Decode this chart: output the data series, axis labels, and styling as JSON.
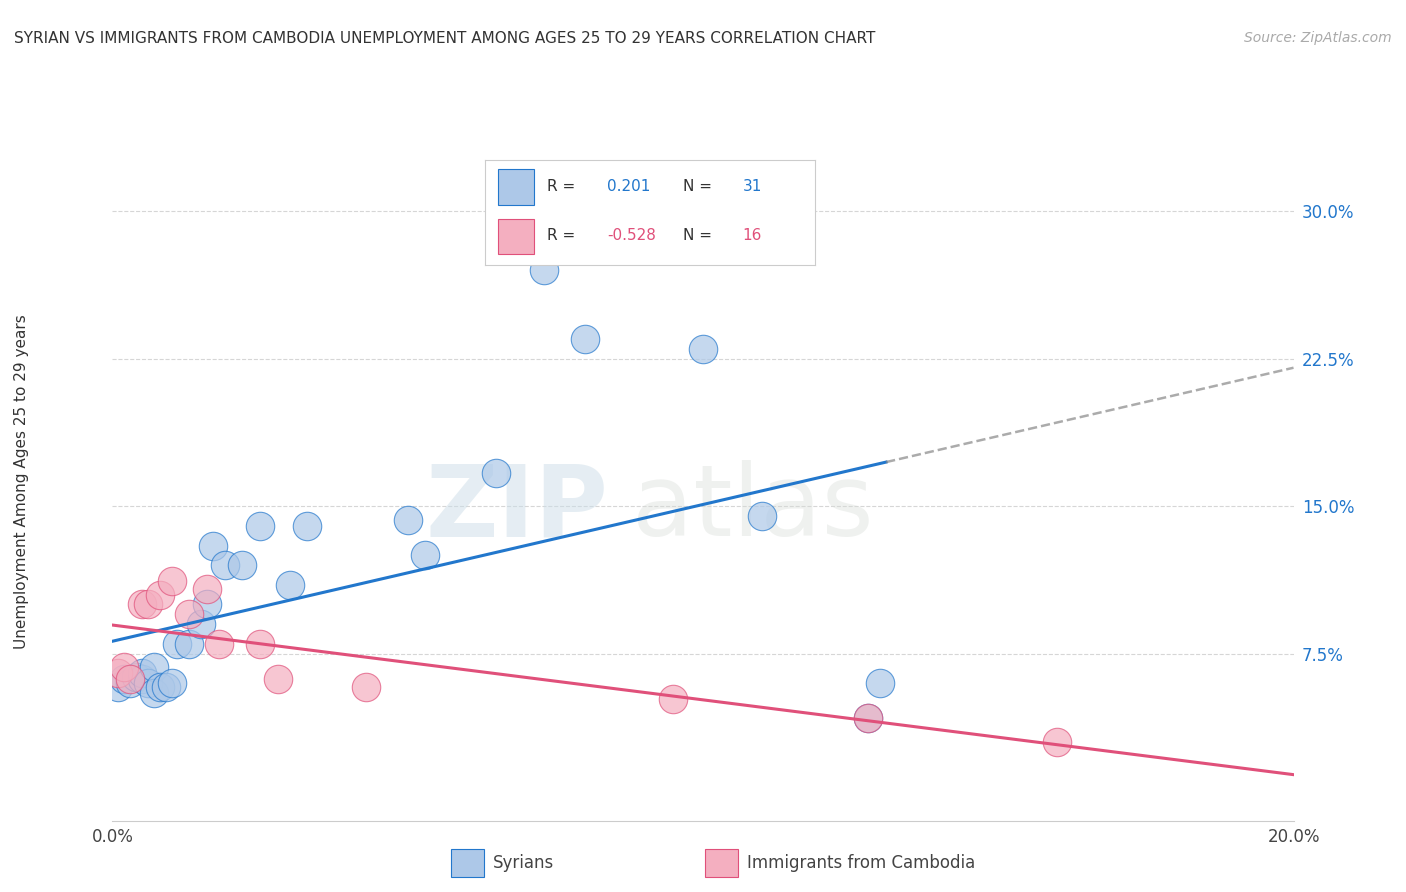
{
  "title": "SYRIAN VS IMMIGRANTS FROM CAMBODIA UNEMPLOYMENT AMONG AGES 25 TO 29 YEARS CORRELATION CHART",
  "source": "Source: ZipAtlas.com",
  "ylabel": "Unemployment Among Ages 25 to 29 years",
  "xlim": [
    0.0,
    0.2
  ],
  "ylim": [
    -0.01,
    0.335
  ],
  "ytick_positions": [
    0.075,
    0.15,
    0.225,
    0.3
  ],
  "ytick_labels": [
    "7.5%",
    "15.0%",
    "22.5%",
    "30.0%"
  ],
  "syrians_color": "#adc8e8",
  "cambodia_color": "#f4afc0",
  "line_syrian_color": "#2277cc",
  "line_cambodia_color": "#e0507a",
  "watermark_zip": "ZIP",
  "watermark_atlas": "atlas",
  "syrians_x": [
    0.001,
    0.002,
    0.003,
    0.004,
    0.005,
    0.005,
    0.006,
    0.007,
    0.007,
    0.008,
    0.009,
    0.01,
    0.011,
    0.013,
    0.015,
    0.016,
    0.017,
    0.019,
    0.022,
    0.025,
    0.03,
    0.033,
    0.05,
    0.053,
    0.065,
    0.073,
    0.08,
    0.1,
    0.11,
    0.128,
    0.13
  ],
  "syrians_y": [
    0.058,
    0.062,
    0.06,
    0.063,
    0.062,
    0.065,
    0.06,
    0.068,
    0.055,
    0.058,
    0.058,
    0.06,
    0.08,
    0.08,
    0.09,
    0.1,
    0.13,
    0.12,
    0.12,
    0.14,
    0.11,
    0.14,
    0.143,
    0.125,
    0.167,
    0.27,
    0.235,
    0.23,
    0.145,
    0.042,
    0.06
  ],
  "cambodia_x": [
    0.001,
    0.002,
    0.003,
    0.005,
    0.006,
    0.008,
    0.01,
    0.013,
    0.016,
    0.018,
    0.025,
    0.028,
    0.043,
    0.095,
    0.128,
    0.16
  ],
  "cambodia_y": [
    0.065,
    0.068,
    0.062,
    0.1,
    0.1,
    0.105,
    0.112,
    0.095,
    0.108,
    0.08,
    0.08,
    0.062,
    0.058,
    0.052,
    0.042,
    0.03
  ],
  "background_color": "#ffffff",
  "grid_color": "#cccccc",
  "scatter_size": 420
}
